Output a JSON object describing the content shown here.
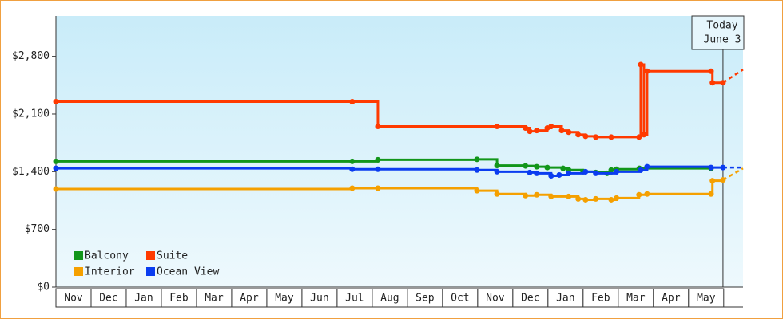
{
  "chart_data": {
    "type": "step-line",
    "months": [
      "Nov",
      "Dec",
      "Jan",
      "Feb",
      "Mar",
      "Apr",
      "May",
      "Jun",
      "Jul",
      "Aug",
      "Sep",
      "Oct",
      "Nov",
      "Dec",
      "Jan",
      "Feb",
      "Mar",
      "Apr",
      "May"
    ],
    "xlim": [
      0,
      19.55
    ],
    "ylim": [
      0,
      3290
    ],
    "yticks": [
      {
        "value": 0,
        "label": "$0"
      },
      {
        "value": 700,
        "label": "$700"
      },
      {
        "value": 1400,
        "label": "$1,400"
      },
      {
        "value": 2100,
        "label": "$2,100"
      },
      {
        "value": 2800,
        "label": "$2,800"
      }
    ],
    "today_x": 18.98,
    "today_label": "Today",
    "today_date": "June 3",
    "series": [
      {
        "name": "Balcony",
        "color": "#12961a",
        "x": [
          0,
          8.43,
          9.16,
          11.98,
          12.55,
          13.36,
          13.68,
          13.98,
          14.43,
          14.59,
          15.0,
          15.36,
          15.68,
          15.8,
          15.95,
          16.6,
          18.64
        ],
        "values": [
          1525,
          1525,
          1545,
          1550,
          1475,
          1470,
          1460,
          1450,
          1440,
          1420,
          1400,
          1390,
          1380,
          1420,
          1430,
          1440,
          1440
        ]
      },
      {
        "name": "Suite",
        "color": "#ff3a00",
        "x": [
          0,
          8.43,
          9.16,
          12.55,
          13.36,
          13.48,
          13.68,
          13.98,
          14.09,
          14.39,
          14.59,
          14.86,
          15.07,
          15.36,
          15.8,
          16.59,
          16.64,
          16.73,
          16.82,
          18.64,
          18.68,
          18.98,
          19.55
        ],
        "values": [
          2250,
          2250,
          1950,
          1950,
          1930,
          1890,
          1900,
          1930,
          1950,
          1900,
          1880,
          1850,
          1830,
          1820,
          1820,
          1820,
          2700,
          1850,
          2620,
          2620,
          2480,
          2480,
          2640
        ]
      },
      {
        "name": "Interior",
        "color": "#f5a000",
        "x": [
          0,
          8.43,
          9.16,
          11.98,
          12.55,
          13.36,
          13.68,
          14.09,
          14.59,
          14.86,
          15.07,
          15.36,
          15.8,
          15.95,
          16.59,
          16.82,
          18.64,
          18.68,
          18.98,
          19.55
        ],
        "values": [
          1190,
          1200,
          1200,
          1170,
          1130,
          1110,
          1120,
          1100,
          1100,
          1070,
          1060,
          1070,
          1060,
          1080,
          1120,
          1130,
          1130,
          1290,
          1300,
          1440
        ]
      },
      {
        "name": "Ocean View",
        "color": "#0a3cf0",
        "x": [
          0,
          8.43,
          9.16,
          11.98,
          12.55,
          13.48,
          13.68,
          14.09,
          14.32,
          14.59,
          15.07,
          15.36,
          15.95,
          16.64,
          16.82,
          18.64,
          18.98,
          19.55
        ],
        "values": [
          1440,
          1430,
          1430,
          1420,
          1400,
          1390,
          1380,
          1350,
          1360,
          1380,
          1400,
          1380,
          1400,
          1420,
          1460,
          1450,
          1450,
          1450
        ]
      }
    ]
  }
}
